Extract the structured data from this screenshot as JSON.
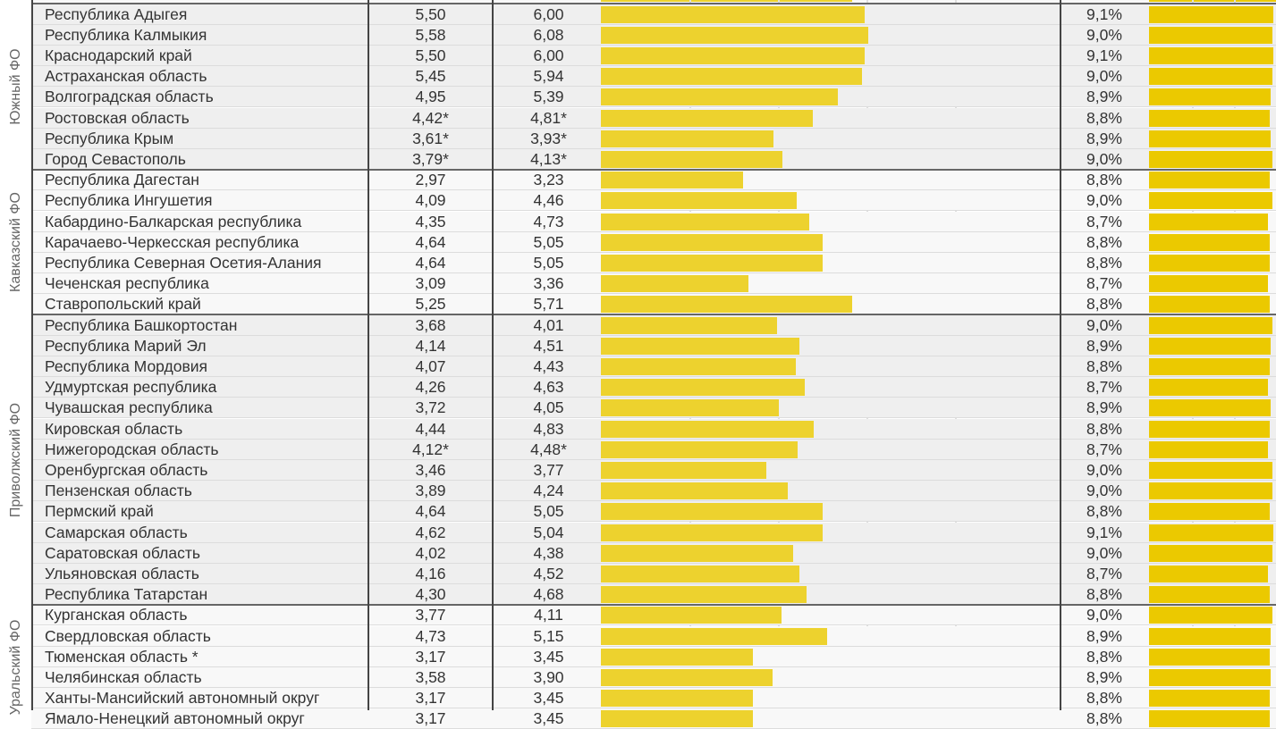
{
  "colors": {
    "bar": "#edd22e",
    "bar_pct": "#ebc900",
    "group_bg_a": "#efefef",
    "group_bg_b": "#f8f8f8"
  },
  "groups": [
    {
      "label": "Южный ФО",
      "rows": [
        [
          "Республика Адыгея",
          "5,50",
          "6,00",
          6.0,
          "9,1%",
          9.1
        ],
        [
          "Республика Калмыкия",
          "5,58",
          "6,08",
          6.08,
          "9,0%",
          9.0
        ],
        [
          "Краснодарский край",
          "5,50",
          "6,00",
          6.0,
          "9,1%",
          9.1
        ],
        [
          "Астраханская область",
          "5,45",
          "5,94",
          5.94,
          "9,0%",
          9.0
        ],
        [
          "Волгоградская область",
          "4,95",
          "5,39",
          5.39,
          "8,9%",
          8.9
        ],
        [
          "Ростовская область",
          "4,42*",
          "4,81*",
          4.81,
          "8,8%",
          8.8
        ],
        [
          "Республика Крым",
          "3,61*",
          "3,93*",
          3.93,
          "8,9%",
          8.9
        ],
        [
          "Город Севастополь",
          "3,79*",
          "4,13*",
          4.13,
          "9,0%",
          9.0
        ]
      ]
    },
    {
      "label": "Кавказский ФО",
      "rows": [
        [
          "Республика Дагестан",
          "2,97",
          "3,23",
          3.23,
          "8,8%",
          8.8
        ],
        [
          "Республика Ингушетия",
          "4,09",
          "4,46",
          4.46,
          "9,0%",
          9.0
        ],
        [
          "Кабардино-Балкарская республика",
          "4,35",
          "4,73",
          4.73,
          "8,7%",
          8.7
        ],
        [
          "Карачаево-Черкесская республика",
          "4,64",
          "5,05",
          5.05,
          "8,8%",
          8.8
        ],
        [
          "Республика Северная Осетия-Алания",
          "4,64",
          "5,05",
          5.05,
          "8,8%",
          8.8
        ],
        [
          "Чеченская республика",
          "3,09",
          "3,36",
          3.36,
          "8,7%",
          8.7
        ],
        [
          "Ставропольский край",
          "5,25",
          "5,71",
          5.71,
          "8,8%",
          8.8
        ]
      ]
    },
    {
      "label": "Приволжский ФО",
      "rows": [
        [
          "Республика Башкортостан",
          "3,68",
          "4,01",
          4.01,
          "9,0%",
          9.0
        ],
        [
          "Республика Марий Эл",
          "4,14",
          "4,51",
          4.51,
          "8,9%",
          8.9
        ],
        [
          "Республика Мордовия",
          "4,07",
          "4,43",
          4.43,
          "8,8%",
          8.8
        ],
        [
          "Удмуртская республика",
          "4,26",
          "4,63",
          4.63,
          "8,7%",
          8.7
        ],
        [
          "Чувашская республика",
          "3,72",
          "4,05",
          4.05,
          "8,9%",
          8.9
        ],
        [
          "Кировская область",
          "4,44",
          "4,83",
          4.83,
          "8,8%",
          8.8
        ],
        [
          "Нижегородская область",
          "4,12*",
          "4,48*",
          4.48,
          "8,7%",
          8.7
        ],
        [
          "Оренбургская область",
          "3,46",
          "3,77",
          3.77,
          "9,0%",
          9.0
        ],
        [
          "Пензенская область",
          "3,89",
          "4,24",
          4.24,
          "9,0%",
          9.0
        ],
        [
          "Пермский край",
          "4,64",
          "5,05",
          5.05,
          "8,8%",
          8.8
        ],
        [
          "Самарская область",
          "4,62",
          "5,04",
          5.04,
          "9,1%",
          9.1
        ],
        [
          "Саратовская область",
          "4,02",
          "4,38",
          4.38,
          "9,0%",
          9.0
        ],
        [
          "Ульяновская область",
          "4,16",
          "4,52",
          4.52,
          "8,7%",
          8.7
        ],
        [
          "Республика Татарстан",
          "4,30",
          "4,68",
          4.68,
          "8,8%",
          8.8
        ]
      ]
    },
    {
      "label": "Уральский ФО",
      "rows": [
        [
          "Курганская область",
          "3,77",
          "4,11",
          4.11,
          "9,0%",
          9.0
        ],
        [
          "Свердловская область",
          "4,73",
          "5,15",
          5.15,
          "8,9%",
          8.9
        ],
        [
          "Тюменская область *",
          "3,17",
          "3,45",
          3.45,
          "8,8%",
          8.8
        ],
        [
          "Челябинская область",
          "3,58",
          "3,90",
          3.9,
          "8,9%",
          8.9
        ],
        [
          "Ханты-Мансийский автономный округ",
          "3,17",
          "3,45",
          3.45,
          "8,8%",
          8.8
        ],
        [
          "Ямало-Ненецкий автономный округ",
          "3,17",
          "3,45",
          3.45,
          "8,8%",
          8.8
        ]
      ]
    }
  ]
}
